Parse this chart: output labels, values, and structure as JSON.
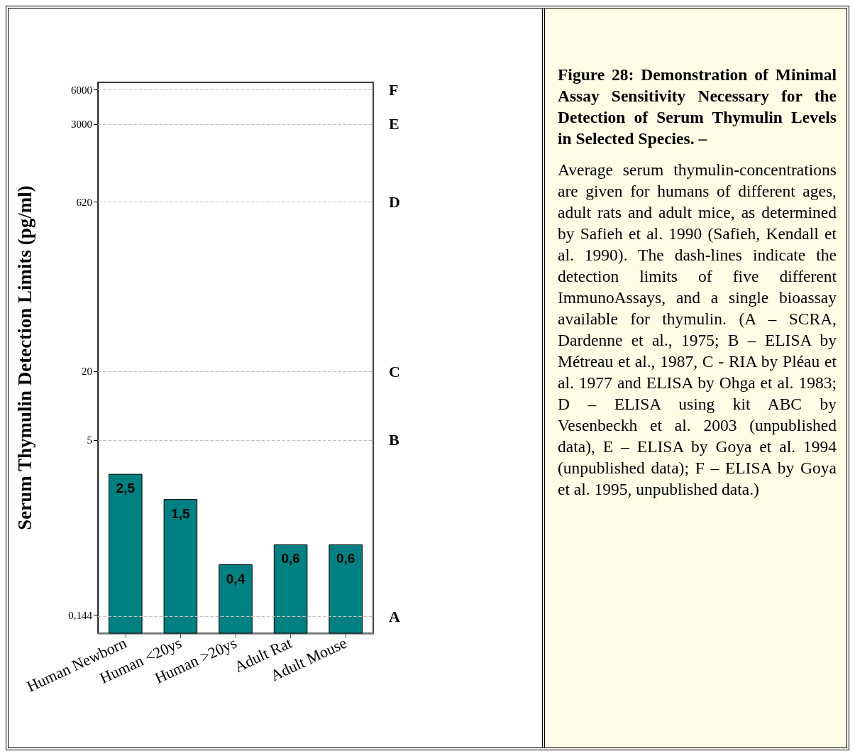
{
  "chart_data": {
    "type": "bar",
    "title": "Figure 28: Demonstration of Minimal Assay Sensitivity Necessary for the Detection of Serum Thymulin Levels in Selected Species. –",
    "ylabel": "Serum Thymulin Detection Limits (pg/ml)",
    "categories": [
      "Human Newborn",
      "Human <20ys",
      "Human >20ys",
      "Adult Rat",
      "Adult Mouse"
    ],
    "values": [
      2.5,
      1.5,
      0.4,
      0.6,
      0.6
    ],
    "value_labels": [
      "2,5",
      "1,5",
      "0,4",
      "0,6",
      "0,6"
    ],
    "color": "#008080",
    "log": "y",
    "ylim": [
      0.1,
      7000
    ],
    "yticks": [
      {
        "value": 0.144,
        "label": "0,144"
      },
      5,
      20,
      620,
      3000,
      6000
    ],
    "grid": false,
    "ref_lines": [
      {
        "axis": "y",
        "value": 0.144,
        "label": "A",
        "color": "#c0c0c0",
        "line_style": "dashed"
      },
      {
        "axis": "y",
        "value": 5,
        "label": "B",
        "color": "#c0c0c0",
        "line_style": "dashed"
      },
      {
        "axis": "y",
        "value": 20,
        "label": "C",
        "color": "#c0c0c0",
        "line_style": "dashed"
      },
      {
        "axis": "y",
        "value": 620,
        "label": "D",
        "color": "#c0c0c0",
        "line_style": "dashed"
      },
      {
        "axis": "y",
        "value": 3000,
        "label": "E",
        "color": "#c0c0c0",
        "line_style": "dashed"
      },
      {
        "axis": "y",
        "value": 6000,
        "label": "F",
        "color": "#c0c0c0",
        "line_style": "dashed"
      }
    ],
    "annotations": [
      "Average serum thymulin-concentrations are given for humans of different ages, adult rats and adult mice, as determined by Safieh et al. 1990 (Safieh, Kendall et al. 1990). The dash-lines indicate the detection limits of five different ImmunoAssays, and a single bioassay available for thymulin. (A – SCRA, Dardenne et al., 1975; B – ELISA by Métreau et al., 1987, C - RIA by Pléau et al. 1977 and ELISA by Ohga et al. 1983; D – ELISA using kit ABC by Vesenbeckh et al. 2003 (unpublished data), E – ELISA by Goya et al. 1994 (unpublished data); F – ELISA by Goya et al. 1995, unpublished data.)"
    ]
  }
}
